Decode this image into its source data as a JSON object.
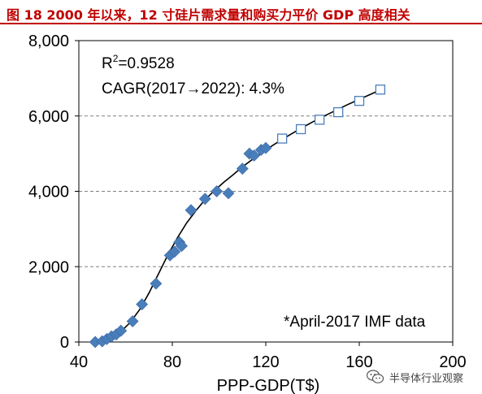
{
  "header": {
    "title": "图 18 2000 年以来，12 寸硅片需求量和购买力平价 GDP 高度相关"
  },
  "watermark": {
    "text": "半导体行业观察",
    "icon": "wechat-icon"
  },
  "colors": {
    "title": "#c00000",
    "historical_marker": "#4a7ebb",
    "forecast_marker": "#4a7ebb",
    "fit_line": "#000000",
    "gridline": "#808080"
  },
  "chart_data": {
    "type": "scatter",
    "title": "",
    "xlabel": "PPP-GDP(T$)",
    "ylabel": "",
    "xlim": [
      40,
      200
    ],
    "ylim": [
      0,
      8000
    ],
    "x_ticks": [
      40,
      80,
      120,
      160,
      200
    ],
    "y_ticks": [
      0,
      2000,
      4000,
      6000,
      8000
    ],
    "x_tick_labels": [
      "40",
      "80",
      "120",
      "160",
      "200"
    ],
    "y_tick_labels": [
      "0",
      "2,000",
      "4,000",
      "6,000",
      "8,000"
    ],
    "grid": "horizontal dashed",
    "annotations": {
      "r_squared_prefix": "R",
      "r_squared_sup": "2",
      "r_squared_value": "=0.9528",
      "cagr": "CAGR(2017→2022): 4.3%",
      "footnote": "*April-2017 IMF data"
    },
    "series": [
      {
        "marker": "filled-diamond",
        "x": [
          47,
          50,
          52,
          54,
          56,
          58,
          63,
          67,
          73,
          79,
          81,
          83,
          84,
          88,
          94,
          99,
          104,
          110,
          113,
          115,
          118,
          120
        ],
        "y": [
          0,
          20,
          80,
          150,
          200,
          300,
          550,
          1000,
          1550,
          2300,
          2400,
          2650,
          2550,
          3500,
          3800,
          4000,
          3950,
          4600,
          5000,
          4950,
          5100,
          5150
        ]
      },
      {
        "marker": "open-square",
        "x": [
          127,
          135,
          143,
          151,
          160,
          169
        ],
        "y": [
          5400,
          5650,
          5900,
          6100,
          6400,
          6700
        ]
      }
    ],
    "fit_curve": {
      "x": [
        46,
        50,
        54,
        58,
        62,
        66,
        70,
        74,
        78,
        82,
        86,
        90,
        94,
        98,
        102,
        106,
        110,
        115,
        120,
        125,
        130,
        135,
        140,
        145,
        150,
        155,
        160,
        165,
        170
      ],
      "y": [
        0,
        40,
        120,
        280,
        520,
        860,
        1300,
        1800,
        2300,
        2750,
        3150,
        3480,
        3780,
        4020,
        4240,
        4440,
        4650,
        4880,
        5100,
        5300,
        5490,
        5670,
        5840,
        6000,
        6150,
        6300,
        6440,
        6580,
        6720
      ]
    }
  }
}
